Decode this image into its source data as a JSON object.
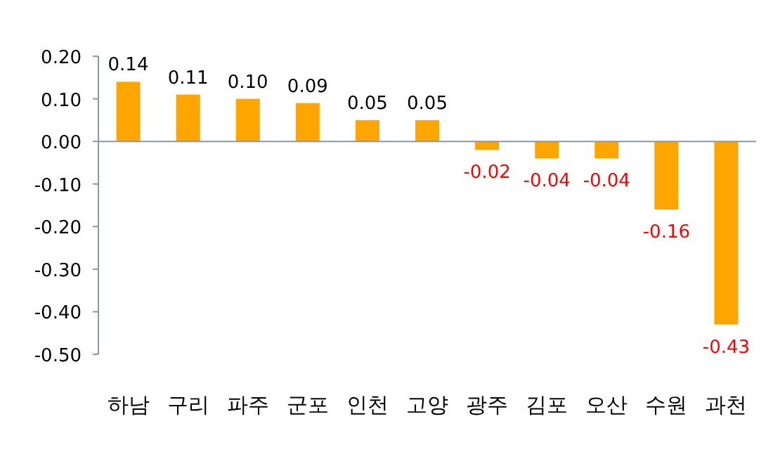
{
  "chart_data": {
    "type": "bar",
    "categories": [
      "하남",
      "구리",
      "파주",
      "군포",
      "인천",
      "고양",
      "광주",
      "김포",
      "오산",
      "수원",
      "과천"
    ],
    "values": [
      0.14,
      0.11,
      0.1,
      0.09,
      0.05,
      0.05,
      -0.02,
      -0.04,
      -0.04,
      -0.16,
      -0.43
    ],
    "color": "#ffa500",
    "ylim": [
      -0.5,
      0.2
    ],
    "yticks": [
      {
        "value": -0.5,
        "label": "-0.50"
      },
      {
        "value": -0.4,
        "label": "-0.40"
      },
      {
        "value": -0.3,
        "label": "-0.30"
      },
      {
        "value": -0.2,
        "label": "-0.20"
      },
      {
        "value": -0.1,
        "label": "-0.10"
      },
      {
        "value": 0,
        "label": "0.00"
      },
      {
        "value": 0.1,
        "label": "0.10"
      },
      {
        "value": 0.2,
        "label": "0.20"
      }
    ],
    "value_labels": [
      "0.14",
      "0.11",
      "0.10",
      "0.09",
      "0.05",
      "0.05",
      "-0.02",
      "-0.04",
      "-0.04",
      "-0.16",
      "-0.43"
    ]
  }
}
